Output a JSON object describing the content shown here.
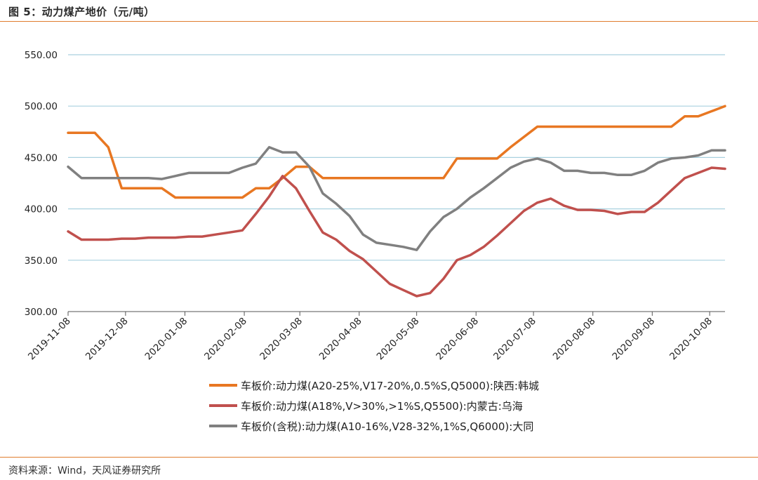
{
  "header": {
    "title": "图 5：动力煤产地价（元/吨）"
  },
  "footer": {
    "source": "资料来源：Wind，天风证券研究所"
  },
  "colors": {
    "accent_rule": "#E07D2E",
    "grid": "#A9D1DF"
  },
  "chart_data": {
    "type": "line",
    "xlabel": "",
    "ylabel": "",
    "ylim": [
      300,
      550
    ],
    "yticks": [
      "550.00",
      "500.00",
      "450.00",
      "400.00",
      "350.00",
      "300.00"
    ],
    "xticks": [
      "2019-11-08",
      "2019-12-08",
      "2020-01-08",
      "2020-02-08",
      "2020-03-08",
      "2020-04-08",
      "2020-05-08",
      "2020-06-08",
      "2020-07-08",
      "2020-08-08",
      "2020-09-08",
      "2020-10-08"
    ],
    "x": [
      "2019-11-08",
      "2019-11-15",
      "2019-11-22",
      "2019-11-29",
      "2019-12-06",
      "2019-12-13",
      "2019-12-20",
      "2019-12-27",
      "2020-01-03",
      "2020-01-10",
      "2020-01-17",
      "2020-01-24",
      "2020-01-31",
      "2020-02-07",
      "2020-02-14",
      "2020-02-21",
      "2020-02-28",
      "2020-03-06",
      "2020-03-13",
      "2020-03-20",
      "2020-03-27",
      "2020-04-03",
      "2020-04-10",
      "2020-04-17",
      "2020-04-24",
      "2020-05-01",
      "2020-05-08",
      "2020-05-15",
      "2020-05-22",
      "2020-05-29",
      "2020-06-05",
      "2020-06-12",
      "2020-06-19",
      "2020-06-26",
      "2020-07-03",
      "2020-07-10",
      "2020-07-17",
      "2020-07-24",
      "2020-07-31",
      "2020-08-07",
      "2020-08-14",
      "2020-08-21",
      "2020-08-28",
      "2020-09-04",
      "2020-09-11",
      "2020-09-18",
      "2020-09-25",
      "2020-10-02",
      "2020-10-09",
      "2020-10-16"
    ],
    "grid": true,
    "legend_position": "bottom",
    "series": [
      {
        "name": "车板价:动力煤(A20-25%,V17-20%,0.5%S,Q5000):陕西:韩城",
        "color": "#E87722",
        "values": [
          474,
          474,
          474,
          460,
          420,
          420,
          420,
          420,
          411,
          411,
          411,
          411,
          411,
          411,
          420,
          420,
          430,
          441,
          441,
          430,
          430,
          430,
          430,
          430,
          430,
          430,
          430,
          430,
          430,
          449,
          449,
          449,
          449,
          460,
          470,
          480,
          480,
          480,
          480,
          480,
          480,
          480,
          480,
          480,
          480,
          480,
          490,
          490,
          495,
          500
        ]
      },
      {
        "name": "车板价:动力煤(A18%,V>30%,>1%S,Q5500):内蒙古:乌海",
        "color": "#C0504D",
        "values": [
          378,
          370,
          370,
          370,
          371,
          371,
          372,
          372,
          372,
          373,
          373,
          375,
          377,
          379,
          395,
          412,
          432,
          420,
          398,
          377,
          370,
          359,
          351,
          339,
          327,
          321,
          315,
          318,
          332,
          350,
          355,
          363,
          374,
          386,
          398,
          406,
          410,
          403,
          399,
          399,
          398,
          395,
          397,
          397,
          406,
          418,
          430,
          435,
          440,
          439
        ]
      },
      {
        "name": "车板价(含税):动力煤(A10-16%,V28-32%,1%S,Q6000):大同",
        "color": "#808080",
        "values": [
          441,
          430,
          430,
          430,
          430,
          430,
          430,
          429,
          432,
          435,
          435,
          435,
          435,
          440,
          444,
          460,
          455,
          455,
          441,
          415,
          405,
          393,
          375,
          367,
          365,
          363,
          360,
          378,
          392,
          400,
          411,
          420,
          430,
          440,
          446,
          449,
          445,
          437,
          437,
          435,
          435,
          433,
          433,
          437,
          445,
          449,
          450,
          452,
          457,
          457
        ]
      }
    ]
  }
}
